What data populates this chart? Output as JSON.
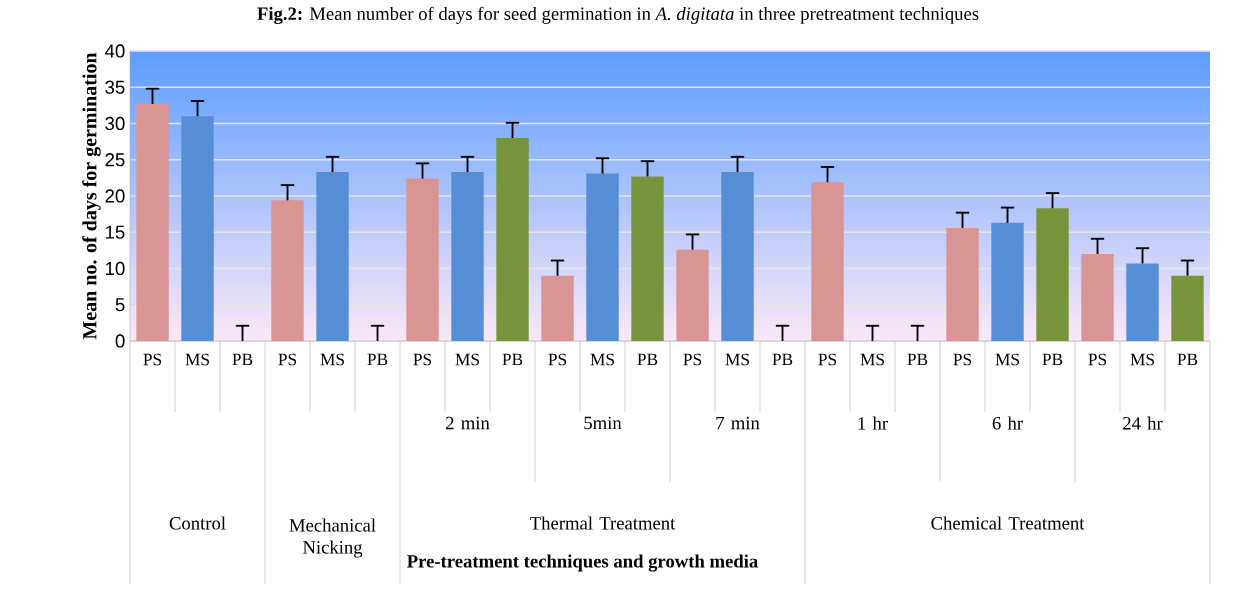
{
  "chart_data": {
    "type": "bar",
    "title": "**Fig.2:** Mean number of days for seed germination in *A. digitata* in three pretreatment techniques",
    "ylabel": "Mean no. of days for germination",
    "categories": [
      "PS",
      "MS",
      "PB",
      "PS",
      "MS",
      "PB",
      "PS",
      "MS",
      "PB",
      "PS",
      "MS",
      "PB",
      "PS",
      "MS",
      "PB",
      "PS",
      "MS",
      "PB",
      "PS",
      "MS",
      "PB",
      "PS",
      "MS",
      "PB"
    ],
    "values": [
      32.7,
      31.0,
      0,
      19.4,
      23.3,
      0,
      22.4,
      23.3,
      28.0,
      9.0,
      23.1,
      22.7,
      12.6,
      23.3,
      0,
      21.9,
      0,
      0,
      15.6,
      16.3,
      18.3,
      12.0,
      10.7,
      9.0
    ],
    "errors": [
      [
        32.7,
        34.8
      ],
      [
        31.0,
        33.1
      ],
      [
        0,
        2.1
      ],
      [
        19.4,
        21.5
      ],
      [
        23.3,
        25.4
      ],
      [
        0,
        2.1
      ],
      [
        22.4,
        24.5
      ],
      [
        23.3,
        25.4
      ],
      [
        28.0,
        30.1
      ],
      [
        9.0,
        11.1
      ],
      [
        23.1,
        25.2
      ],
      [
        22.7,
        24.8
      ],
      [
        12.6,
        14.7
      ],
      [
        23.3,
        25.4
      ],
      [
        0,
        2.1
      ],
      [
        21.9,
        24.0
      ],
      [
        0,
        2.1
      ],
      [
        0,
        2.1
      ],
      [
        15.6,
        17.7
      ],
      [
        16.3,
        18.4
      ],
      [
        18.3,
        20.4
      ],
      [
        12.0,
        14.1
      ],
      [
        10.7,
        12.8
      ],
      [
        9.0,
        11.1
      ]
    ],
    "colors": [
      "#d99594",
      "#558ed5",
      "#77933c",
      "#d99594",
      "#558ed5",
      "#77933c",
      "#d99594",
      "#558ed5",
      "#77933c",
      "#d99594",
      "#558ed5",
      "#77933c",
      "#d99594",
      "#558ed5",
      "#77933c",
      "#d99594",
      "#558ed5",
      "#77933c",
      "#d99594",
      "#558ed5",
      "#77933c",
      "#d99594",
      "#558ed5",
      "#77933c"
    ],
    "ylim": [
      0,
      40
    ],
    "yticks": [
      0,
      5,
      10,
      15,
      20,
      25,
      30,
      35,
      40
    ],
    "grid": "y",
    "annotations": [
      "2 min",
      "5min",
      "7 min",
      "1 hr",
      "6 hr",
      "24 hr",
      "Control",
      "Mechanical Nicking",
      "Thermal Treatment",
      "Chemical Treatment",
      "Pre-treatment techniques and growth media"
    ]
  }
}
